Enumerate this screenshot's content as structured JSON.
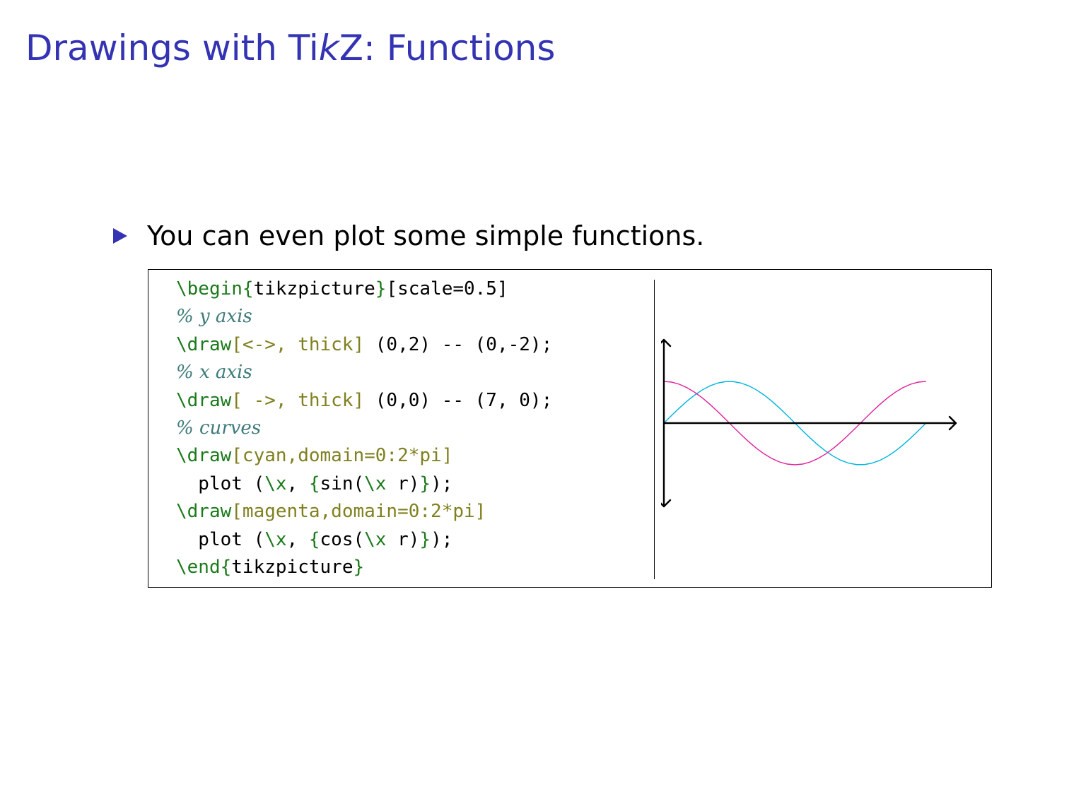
{
  "slide": {
    "title_before": "Drawings with Ti",
    "title_k": "k",
    "title_after": "Z: Functions",
    "bullet_text": "You can even plot some simple functions.",
    "colors": {
      "title": "#3333b3",
      "bullet": "#3333b3",
      "keyword": "#1c7a1c",
      "option": "#808020",
      "comment": "#3e7a7a"
    }
  },
  "code": [
    [
      {
        "t": "\\begin{",
        "c": "kw"
      },
      {
        "t": "tikzpicture",
        "c": ""
      },
      {
        "t": "}",
        "c": "kw"
      },
      {
        "t": "[scale=0.5]",
        "c": ""
      }
    ],
    [
      {
        "t": "% y axis",
        "c": "cmt"
      }
    ],
    [
      {
        "t": "\\draw",
        "c": "kw"
      },
      {
        "t": "[<->, thick]",
        "c": "opt"
      },
      {
        "t": " (0,2) -- (0,-2);",
        "c": ""
      }
    ],
    [
      {
        "t": "% x axis",
        "c": "cmt"
      }
    ],
    [
      {
        "t": "\\draw",
        "c": "kw"
      },
      {
        "t": "[ ->, thick]",
        "c": "opt"
      },
      {
        "t": " (0,0) -- (7, 0);",
        "c": ""
      }
    ],
    [
      {
        "t": "% curves",
        "c": "cmt"
      }
    ],
    [
      {
        "t": "\\draw",
        "c": "kw"
      },
      {
        "t": "[cyan,domain=0:2*pi]",
        "c": "opt"
      }
    ],
    [
      {
        "t": "  plot (",
        "c": ""
      },
      {
        "t": "\\x",
        "c": "kw"
      },
      {
        "t": ", ",
        "c": ""
      },
      {
        "t": "{",
        "c": "kw"
      },
      {
        "t": "sin(",
        "c": ""
      },
      {
        "t": "\\x",
        "c": "kw"
      },
      {
        "t": " r)",
        "c": ""
      },
      {
        "t": "}",
        "c": "kw"
      },
      {
        "t": ");",
        "c": ""
      }
    ],
    [
      {
        "t": "\\draw",
        "c": "kw"
      },
      {
        "t": "[magenta,domain=0:2*pi]",
        "c": "opt"
      }
    ],
    [
      {
        "t": "  plot (",
        "c": ""
      },
      {
        "t": "\\x",
        "c": "kw"
      },
      {
        "t": ", ",
        "c": ""
      },
      {
        "t": "{",
        "c": "kw"
      },
      {
        "t": "cos(",
        "c": ""
      },
      {
        "t": "\\x",
        "c": "kw"
      },
      {
        "t": " r)",
        "c": ""
      },
      {
        "t": "}",
        "c": "kw"
      },
      {
        "t": ");",
        "c": ""
      }
    ],
    [
      {
        "t": "\\end{",
        "c": "kw"
      },
      {
        "t": "tikzpicture",
        "c": ""
      },
      {
        "t": "}",
        "c": "kw"
      }
    ]
  ],
  "plot": {
    "x_axis": {
      "from": 0,
      "to": 7,
      "arrow": "end"
    },
    "y_axis": {
      "from": -2,
      "to": 2,
      "arrow": "both"
    },
    "domain": [
      0,
      6.2832
    ],
    "curves": [
      {
        "function": "sin",
        "color": "#00b4dc"
      },
      {
        "function": "cos",
        "color": "#e0209a"
      }
    ],
    "axis_color": "#000000"
  }
}
